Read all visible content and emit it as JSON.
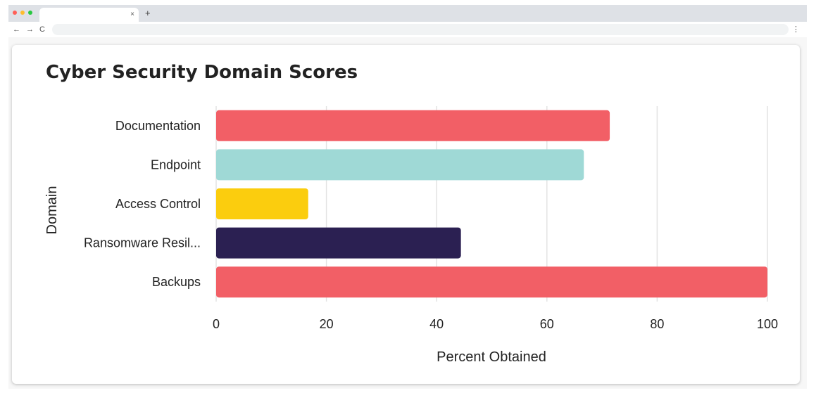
{
  "browser": {
    "tab_title": "",
    "tab_close": "×",
    "new_tab": "+",
    "nav_back": "←",
    "nav_forward": "→",
    "nav_reload": "C",
    "address": "",
    "menu": "⋮"
  },
  "chart_data": {
    "type": "bar",
    "orientation": "horizontal",
    "title": "Cyber Security Domain Scores",
    "xlabel": "Percent Obtained",
    "ylabel": "Domain",
    "categories": [
      "Documentation",
      "Endpoint",
      "Access Control",
      "Ransomware Resil...",
      "Backups"
    ],
    "values": [
      71.4,
      66.7,
      16.7,
      44.4,
      100
    ],
    "colors": [
      "#f25f66",
      "#9fd9d6",
      "#fbcd0e",
      "#2b2052",
      "#f25f66"
    ],
    "xlim": [
      0,
      100
    ],
    "xticks": [
      0,
      20,
      40,
      60,
      80,
      100
    ],
    "grid": "vertical",
    "legend": "none"
  }
}
